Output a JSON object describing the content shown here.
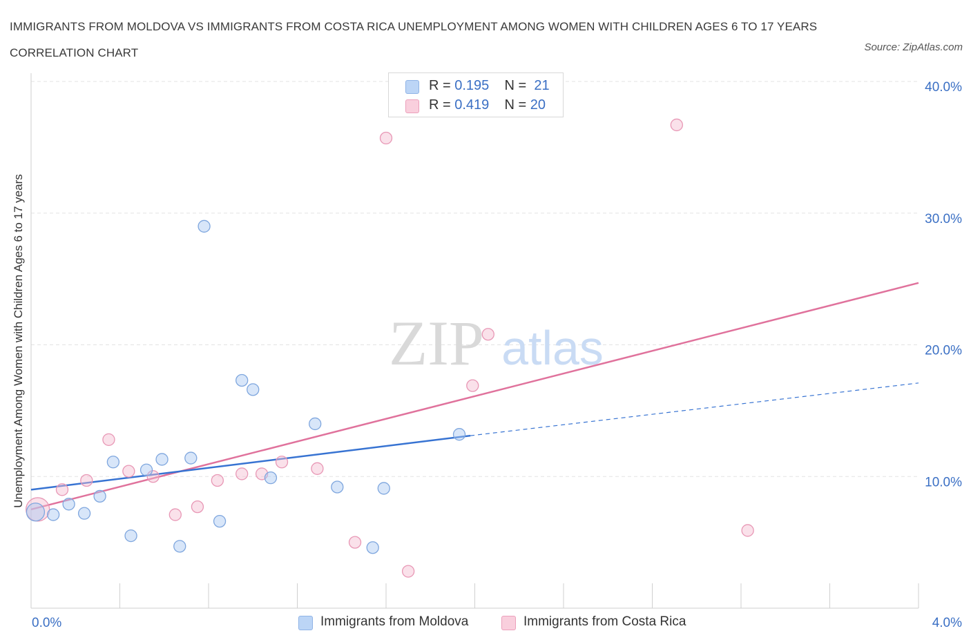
{
  "header": {
    "title": "IMMIGRANTS FROM MOLDOVA VS IMMIGRANTS FROM COSTA RICA UNEMPLOYMENT AMONG WOMEN WITH CHILDREN AGES 6 TO 17 YEARS CORRELATION CHART",
    "source": "Source: ZipAtlas.com"
  },
  "watermark": {
    "zip": "ZIP",
    "atlas": "atlas"
  },
  "legend_top": {
    "rows": [
      {
        "r_label": "R = ",
        "r_value": "0.195",
        "n_label": "N = ",
        "n_value": "21"
      },
      {
        "r_label": "R = ",
        "r_value": "0.419",
        "n_label": "N = ",
        "n_value": "20"
      }
    ]
  },
  "chart_data": {
    "type": "scatter",
    "title": "IMMIGRANTS FROM MOLDOVA VS IMMIGRANTS FROM COSTA RICA UNEMPLOYMENT AMONG WOMEN WITH CHILDREN AGES 6 TO 17 YEARS CORRELATION CHART",
    "xlabel": "",
    "ylabel": "Unemployment Among Women with Children Ages 6 to 17 years",
    "xlim": [
      0,
      4
    ],
    "ylim": [
      0,
      40
    ],
    "x_ticks": [
      "0.0%",
      "4.0%"
    ],
    "y_ticks": [
      {
        "value": 40,
        "label": "40.0%"
      },
      {
        "value": 30,
        "label": "30.0%"
      },
      {
        "value": 20,
        "label": "20.0%"
      },
      {
        "value": 10,
        "label": "10.0%"
      }
    ],
    "grid": true,
    "legend_position": "bottom",
    "colors": {
      "moldova": "#a9c8f2",
      "moldova_line": "#3773d2",
      "costa_rica": "#f5bcd0",
      "costa_rica_line": "#e0729c"
    },
    "series": [
      {
        "name": "Immigrants from Moldova",
        "r": 0.195,
        "n": 21,
        "points": [
          {
            "x": 0.02,
            "y": 7.3
          },
          {
            "x": 0.1,
            "y": 7.1
          },
          {
            "x": 0.17,
            "y": 7.9
          },
          {
            "x": 0.24,
            "y": 7.2
          },
          {
            "x": 0.31,
            "y": 8.5
          },
          {
            "x": 0.37,
            "y": 11.1
          },
          {
            "x": 0.45,
            "y": 5.5
          },
          {
            "x": 0.52,
            "y": 10.5
          },
          {
            "x": 0.59,
            "y": 11.3
          },
          {
            "x": 0.67,
            "y": 4.7
          },
          {
            "x": 0.72,
            "y": 11.4
          },
          {
            "x": 0.78,
            "y": 29.0
          },
          {
            "x": 0.85,
            "y": 6.6
          },
          {
            "x": 0.95,
            "y": 17.3
          },
          {
            "x": 1.0,
            "y": 16.6
          },
          {
            "x": 1.08,
            "y": 9.9
          },
          {
            "x": 1.28,
            "y": 14.0
          },
          {
            "x": 1.38,
            "y": 9.2
          },
          {
            "x": 1.54,
            "y": 4.6
          },
          {
            "x": 1.59,
            "y": 9.1
          },
          {
            "x": 1.93,
            "y": 13.2
          }
        ],
        "trend": {
          "x0": 0,
          "y0": 9.0,
          "x1": 1.98,
          "y1": 13.1,
          "dash_x1": 4.0,
          "dash_y1": 17.1
        }
      },
      {
        "name": "Immigrants from Costa Rica",
        "r": 0.419,
        "n": 20,
        "points": [
          {
            "x": 0.03,
            "y": 7.5
          },
          {
            "x": 0.14,
            "y": 9.0
          },
          {
            "x": 0.25,
            "y": 9.7
          },
          {
            "x": 0.35,
            "y": 12.8
          },
          {
            "x": 0.44,
            "y": 10.4
          },
          {
            "x": 0.55,
            "y": 10.0
          },
          {
            "x": 0.65,
            "y": 7.1
          },
          {
            "x": 0.75,
            "y": 7.7
          },
          {
            "x": 0.84,
            "y": 9.7
          },
          {
            "x": 0.95,
            "y": 10.2
          },
          {
            "x": 1.04,
            "y": 10.2
          },
          {
            "x": 1.13,
            "y": 11.1
          },
          {
            "x": 1.29,
            "y": 10.6
          },
          {
            "x": 1.46,
            "y": 5.0
          },
          {
            "x": 1.6,
            "y": 35.7
          },
          {
            "x": 1.7,
            "y": 2.8
          },
          {
            "x": 1.99,
            "y": 16.9
          },
          {
            "x": 2.06,
            "y": 20.8
          },
          {
            "x": 2.91,
            "y": 36.7
          },
          {
            "x": 3.23,
            "y": 5.9
          }
        ],
        "trend": {
          "x0": 0,
          "y0": 7.5,
          "x1": 4.0,
          "y1": 24.7
        }
      }
    ]
  }
}
